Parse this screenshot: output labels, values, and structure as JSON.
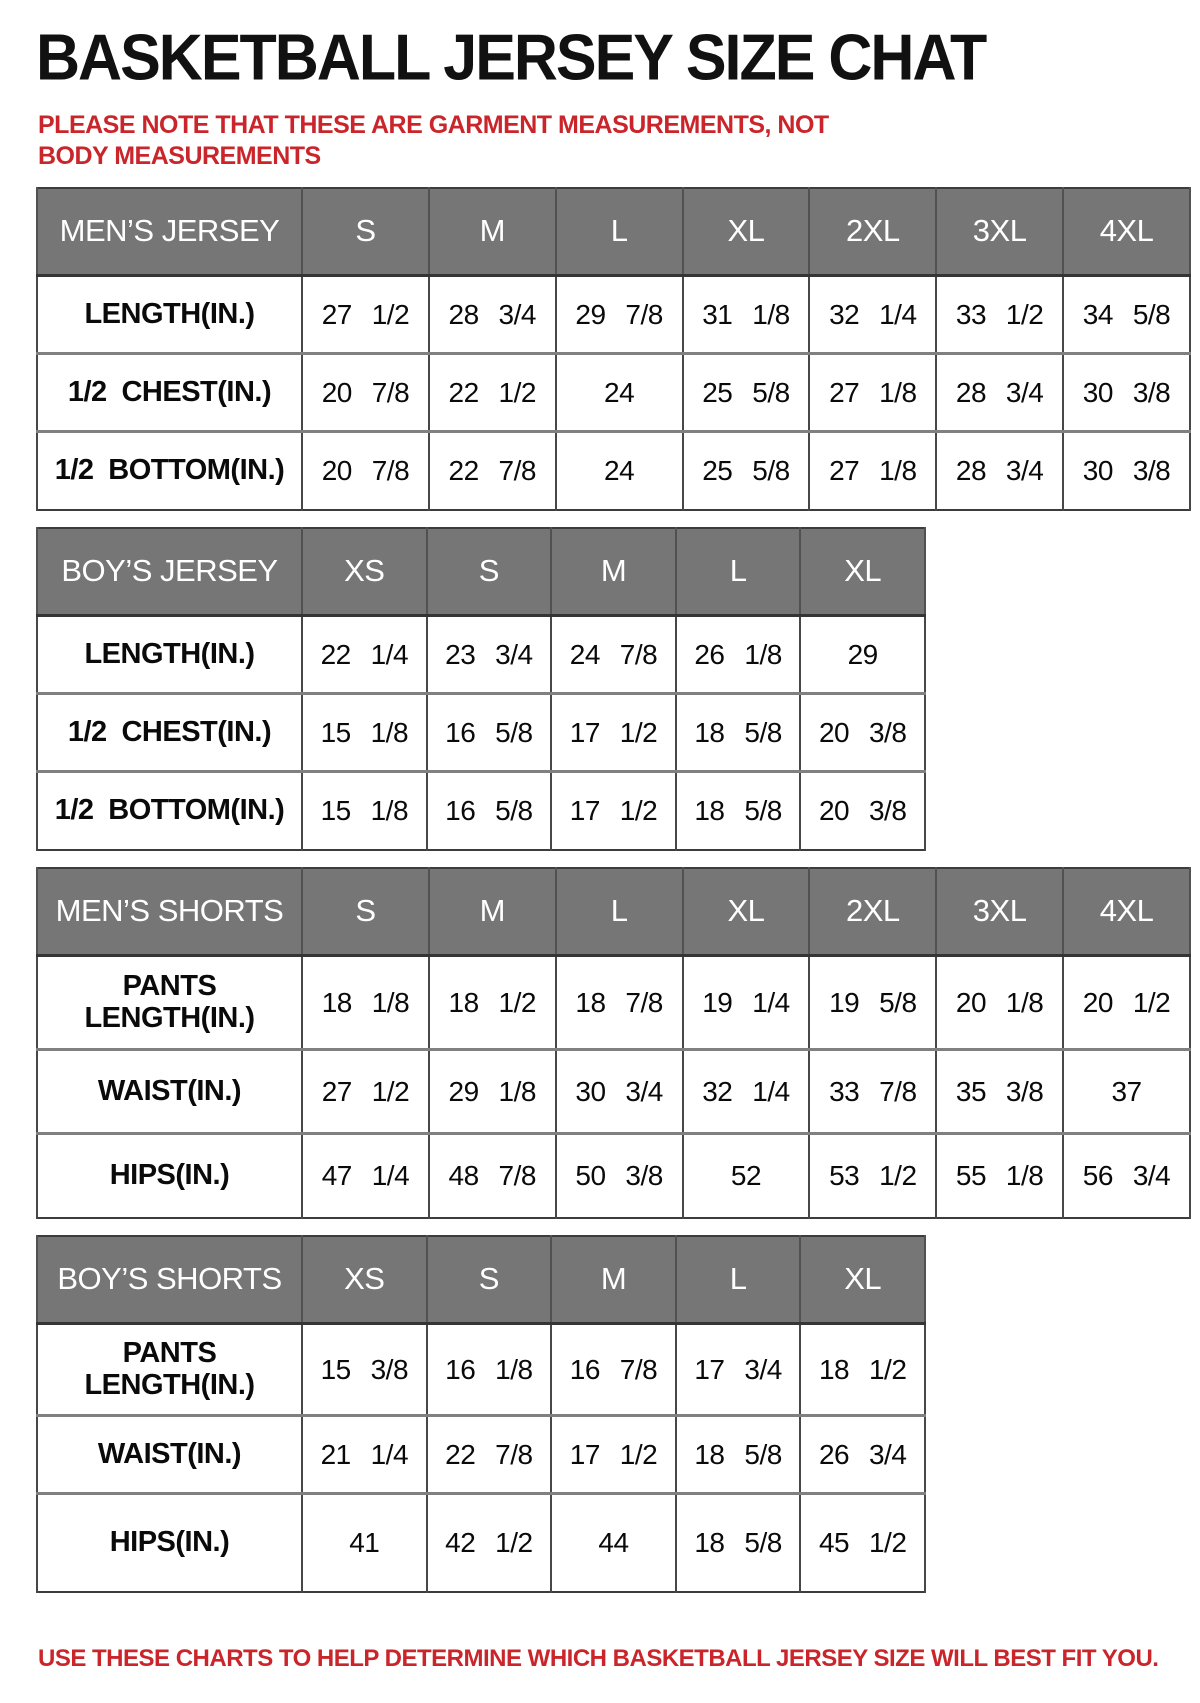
{
  "title": "BASKETBALL JERSEY SIZE CHAT",
  "note": "PLEASE NOTE THAT THESE ARE GARMENT MEASUREMENTS, NOT BODY MEASUREMENTS",
  "footer": "USE THESE CHARTS TO HELP DETERMINE WHICH BASKETBALL JERSEY SIZE WILL BEST FIT YOU.",
  "colors": {
    "accent_red": "#c9252b",
    "header_gray": "#767676",
    "header_text": "#ffffff",
    "border_dark": "#3c3c3c"
  },
  "tables": [
    {
      "name": "mens-jersey",
      "header": [
        "MEN’S JERSEY",
        "S",
        "M",
        "L",
        "XL",
        "2XL",
        "3XL",
        "4XL"
      ],
      "rows": [
        [
          "LENGTH(IN.)",
          "27 1/2",
          "28 3/4",
          "29 7/8",
          "31 1/8",
          "32 1/4",
          "33 1/2",
          "34 5/8"
        ],
        [
          "1/2 CHEST(IN.)",
          "20 7/8",
          "22 1/2",
          "24",
          "25 5/8",
          "27 1/8",
          "28 3/4",
          "30 3/8"
        ],
        [
          "1/2 BOTTOM(IN.)",
          "20 7/8",
          "22 7/8",
          "24",
          "25 5/8",
          "27 1/8",
          "28 3/4",
          "30 3/8"
        ]
      ]
    },
    {
      "name": "boys-jersey",
      "header": [
        "BOY’S JERSEY",
        "XS",
        "S",
        "M",
        "L",
        "XL"
      ],
      "rows": [
        [
          "LENGTH(IN.)",
          "22 1/4",
          "23 3/4",
          "24 7/8",
          "26 1/8",
          "29"
        ],
        [
          "1/2 CHEST(IN.)",
          "15 1/8",
          "16 5/8",
          "17 1/2",
          "18 5/8",
          "20 3/8"
        ],
        [
          "1/2 BOTTOM(IN.)",
          "15 1/8",
          "16 5/8",
          "17 1/2",
          "18 5/8",
          "20 3/8"
        ]
      ]
    },
    {
      "name": "mens-shorts",
      "header": [
        "MEN’S SHORTS",
        "S",
        "M",
        "L",
        "XL",
        "2XL",
        "3XL",
        "4XL"
      ],
      "rows": [
        [
          "PANTS\nLENGTH(IN.)",
          "18 1/8",
          "18 1/2",
          "18 7/8",
          "19 1/4",
          "19 5/8",
          "20 1/8",
          "20 1/2"
        ],
        [
          "WAIST(IN.)",
          "27 1/2",
          "29 1/8",
          "30 3/4",
          "32 1/4",
          "33 7/8",
          "35 3/8",
          "37"
        ],
        [
          "HIPS(IN.)",
          "47 1/4",
          "48 7/8",
          "50 3/8",
          "52",
          "53 1/2",
          "55 1/8",
          "56 3/4"
        ]
      ]
    },
    {
      "name": "boys-shorts",
      "header": [
        "BOY’S SHORTS",
        "XS",
        "S",
        "M",
        "L",
        "XL"
      ],
      "rows": [
        [
          "PANTS\nLENGTH(IN.)",
          "15 3/8",
          "16 1/8",
          "16 7/8",
          "17 3/4",
          "18 1/2"
        ],
        [
          "WAIST(IN.)",
          "21 1/4",
          "22 7/8",
          "17 1/2",
          "18 5/8",
          "26 3/4"
        ],
        [
          "HIPS(IN.)",
          "41",
          "42 1/2",
          "44",
          "18 5/8",
          "45 1/2"
        ]
      ]
    }
  ]
}
